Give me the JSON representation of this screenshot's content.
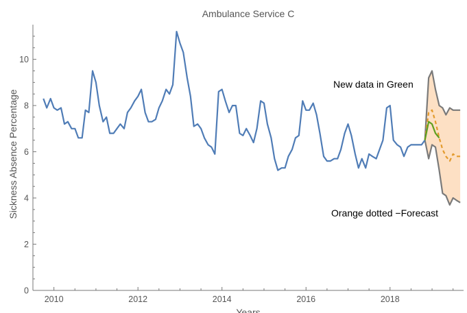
{
  "chart_data": {
    "type": "line",
    "title": "Ambulance Service C",
    "xlabel": "Years",
    "ylabel": "Sickness Absence Percentage",
    "xlim": [
      2009.5,
      2019.75
    ],
    "ylim": [
      0,
      11.5
    ],
    "x_ticks": [
      2010,
      2012,
      2014,
      2016,
      2018
    ],
    "x_tick_labels": [
      "2010",
      "2012",
      "2014",
      "2016",
      "2018"
    ],
    "y_ticks": [
      0,
      2,
      4,
      6,
      8,
      10
    ],
    "y_tick_labels": [
      "0",
      "2",
      "4",
      "6",
      "8",
      "10"
    ],
    "grid": false,
    "annotations": [
      {
        "text": "New data in Green",
        "x": 2018.3,
        "y": 9.0
      },
      {
        "text": "Orange dotted −Forecast",
        "x": 2018.27,
        "y": 3.2
      }
    ],
    "colors": {
      "history": "#4f7cb6",
      "new_data": "#5e9f1f",
      "forecast": "#e39a2c",
      "band_fill": "#fde0c4",
      "band_edge": "#7a7a7a",
      "axis": "#777777"
    },
    "series": [
      {
        "kind": "history",
        "x": [
          2009.75,
          2009.83,
          2009.92,
          2010.0,
          2010.08,
          2010.17,
          2010.25,
          2010.33,
          2010.42,
          2010.5,
          2010.58,
          2010.67,
          2010.75,
          2010.83,
          2010.92,
          2011.0,
          2011.08,
          2011.17,
          2011.25,
          2011.33,
          2011.42,
          2011.5,
          2011.58,
          2011.67,
          2011.75,
          2011.83,
          2011.92,
          2012.0,
          2012.08,
          2012.17,
          2012.25,
          2012.33,
          2012.42,
          2012.5,
          2012.58,
          2012.67,
          2012.75,
          2012.83,
          2012.92,
          2013.0,
          2013.08,
          2013.17,
          2013.25,
          2013.33,
          2013.42,
          2013.5,
          2013.58,
          2013.67,
          2013.75,
          2013.83,
          2013.92,
          2014.0,
          2014.08,
          2014.17,
          2014.25,
          2014.33,
          2014.42,
          2014.5,
          2014.58,
          2014.67,
          2014.75,
          2014.83,
          2014.92,
          2015.0,
          2015.08,
          2015.17,
          2015.25,
          2015.33,
          2015.42,
          2015.5,
          2015.58,
          2015.67,
          2015.75,
          2015.83,
          2015.92,
          2016.0,
          2016.08,
          2016.17,
          2016.25,
          2016.33,
          2016.42,
          2016.5,
          2016.58,
          2016.67,
          2016.75,
          2016.83,
          2016.92,
          2017.0,
          2017.08,
          2017.17,
          2017.25,
          2017.33,
          2017.42,
          2017.5,
          2017.58,
          2017.67,
          2017.75,
          2017.83,
          2017.92,
          2018.0,
          2018.08,
          2018.17,
          2018.25,
          2018.33,
          2018.42,
          2018.5,
          2018.58,
          2018.67,
          2018.75,
          2018.83
        ],
        "values": [
          8.3,
          7.9,
          8.3,
          7.9,
          7.8,
          7.9,
          7.2,
          7.3,
          7.0,
          7.0,
          6.6,
          6.6,
          7.8,
          7.7,
          9.5,
          9.0,
          8.0,
          7.3,
          7.5,
          6.8,
          6.8,
          7.0,
          7.2,
          7.0,
          7.7,
          7.9,
          8.2,
          8.4,
          8.7,
          7.7,
          7.3,
          7.3,
          7.4,
          7.9,
          8.2,
          8.7,
          8.5,
          8.9,
          11.2,
          10.7,
          10.3,
          9.2,
          8.4,
          7.1,
          7.2,
          7.0,
          6.6,
          6.3,
          6.2,
          5.9,
          8.6,
          8.7,
          8.2,
          7.7,
          8.0,
          8.0,
          6.8,
          6.7,
          7.0,
          6.7,
          6.4,
          7.0,
          8.2,
          8.1,
          7.2,
          6.6,
          5.7,
          5.2,
          5.3,
          5.3,
          5.8,
          6.1,
          6.6,
          6.7,
          8.2,
          7.8,
          7.8,
          8.1,
          7.6,
          6.8,
          5.8,
          5.6,
          5.6,
          5.7,
          5.7,
          6.1,
          6.8,
          7.2,
          6.7,
          5.9,
          5.3,
          5.7,
          5.3,
          5.9,
          5.8,
          5.7,
          6.1,
          6.5,
          7.9,
          8.0,
          6.5,
          6.3,
          6.2,
          5.8,
          6.2,
          6.3,
          6.3,
          6.3,
          6.3,
          6.5
        ]
      },
      {
        "kind": "band_upper",
        "x": [
          2018.83,
          2018.92,
          2019.0,
          2019.08,
          2019.17,
          2019.25,
          2019.33,
          2019.42,
          2019.5,
          2019.58,
          2019.67
        ],
        "values": [
          6.5,
          9.2,
          9.5,
          8.7,
          8.0,
          7.9,
          7.6,
          7.9,
          7.8,
          7.8,
          7.8
        ]
      },
      {
        "kind": "band_lower",
        "x": [
          2018.83,
          2018.92,
          2019.0,
          2019.08,
          2019.17,
          2019.25,
          2019.33,
          2019.42,
          2019.5,
          2019.58,
          2019.67
        ],
        "values": [
          6.5,
          5.7,
          6.3,
          6.2,
          5.2,
          4.2,
          4.1,
          3.7,
          4.0,
          3.9,
          3.8
        ]
      },
      {
        "kind": "forecast",
        "x": [
          2018.83,
          2018.92,
          2019.0,
          2019.08,
          2019.17,
          2019.25,
          2019.33,
          2019.42,
          2019.5,
          2019.58,
          2019.67
        ],
        "values": [
          6.5,
          7.7,
          7.8,
          7.3,
          6.6,
          6.1,
          5.8,
          5.6,
          5.9,
          5.8,
          5.8
        ]
      },
      {
        "kind": "new_data",
        "x": [
          2018.83,
          2018.92,
          2019.0,
          2019.08,
          2019.17
        ],
        "values": [
          6.5,
          7.3,
          7.2,
          6.8,
          6.6
        ]
      }
    ]
  }
}
